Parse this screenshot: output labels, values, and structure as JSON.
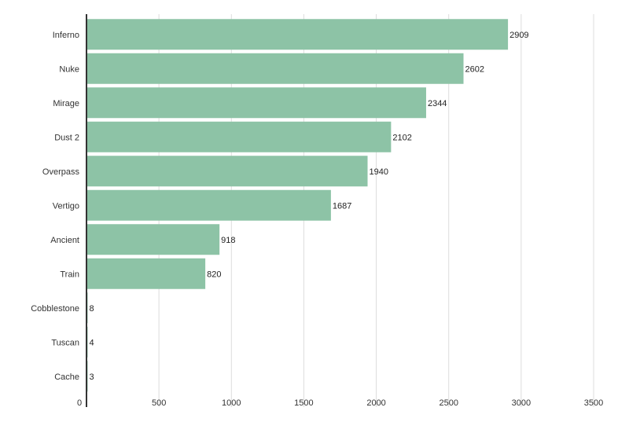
{
  "chart_data": {
    "type": "bar",
    "orientation": "horizontal",
    "categories": [
      "Inferno",
      "Nuke",
      "Mirage",
      "Dust 2",
      "Overpass",
      "Vertigo",
      "Ancient",
      "Train",
      "Cobblestone",
      "Tuscan",
      "Cache"
    ],
    "values": [
      2909,
      2602,
      2344,
      2102,
      1940,
      1687,
      918,
      820,
      8,
      4,
      3
    ],
    "value_labels": [
      "2909",
      "2602",
      "2344",
      "2102",
      "1940",
      "1687",
      "918",
      "820",
      "8",
      "4",
      "3"
    ],
    "xlim": [
      0,
      3500
    ],
    "xticks": [
      0,
      500,
      1000,
      1500,
      2000,
      2500,
      3000,
      3500
    ],
    "xtick_labels": [
      "0",
      "500",
      "1000",
      "1500",
      "2000",
      "2500",
      "3000",
      "3500"
    ],
    "grid": true,
    "bar_color": "#8dc3a6"
  }
}
